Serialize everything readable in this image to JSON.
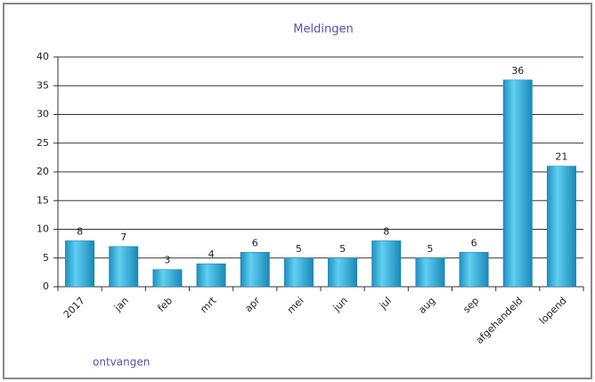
{
  "chart_data": {
    "type": "bar",
    "title": "Meldingen",
    "annotation": "ontvangen",
    "categories": [
      "2017",
      "jan",
      "feb",
      "mrt",
      "apr",
      "mei",
      "jun",
      "jul",
      "aug",
      "sep",
      "afgehandeld",
      "lopend"
    ],
    "values": [
      8,
      7,
      3,
      4,
      6,
      5,
      5,
      8,
      5,
      6,
      36,
      21
    ],
    "color": "#3ab4de",
    "ylim": [
      0,
      40
    ],
    "yticks": [
      0,
      5,
      10,
      15,
      20,
      25,
      30,
      35,
      40
    ],
    "grid": true
  }
}
